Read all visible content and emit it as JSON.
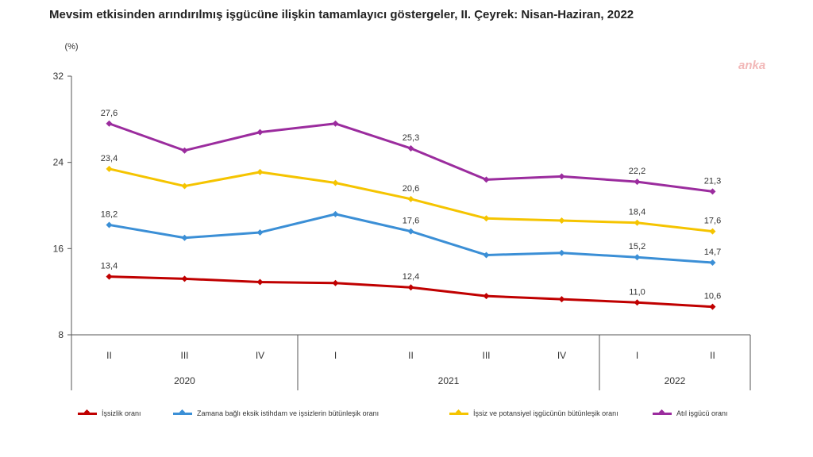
{
  "title": "Mevsim etkisinden arındırılmış işgücüne ilişkin tamamlayıcı göstergeler, II. Çeyrek: Nisan-Haziran, 2022",
  "watermark": "anka",
  "chart_data": {
    "type": "line",
    "ylabel": "(%)",
    "ylim": [
      8,
      32
    ],
    "yticks": [
      "8",
      "16",
      "24",
      "32"
    ],
    "categories": [
      "II",
      "III",
      "IV",
      "I",
      "II",
      "III",
      "IV",
      "I",
      "II"
    ],
    "years": [
      {
        "label": "2020",
        "span": [
          0,
          2
        ]
      },
      {
        "label": "2021",
        "span": [
          3,
          6
        ]
      },
      {
        "label": "2022",
        "span": [
          7,
          8
        ]
      }
    ],
    "grid": false,
    "legend_position": "bottom",
    "series": [
      {
        "name": "İşsizlik oranı",
        "color": "#c00000",
        "values": [
          13.4,
          13.2,
          12.9,
          12.8,
          12.4,
          11.6,
          11.3,
          11.0,
          10.6
        ],
        "labels": [
          "13,4",
          "",
          "",
          "",
          "12,4",
          "",
          "",
          "11,0",
          "10,6"
        ]
      },
      {
        "name": "Zamana bağlı eksik istihdam ve işsizlerin bütünleşik oranı",
        "color": "#3b8fd6",
        "values": [
          18.2,
          17.0,
          17.5,
          19.2,
          17.6,
          15.4,
          15.6,
          15.2,
          14.7
        ],
        "labels": [
          "18,2",
          "",
          "",
          "",
          "17,6",
          "",
          "",
          "15,2",
          "14,7"
        ]
      },
      {
        "name": "İşsiz ve potansiyel işgücünün bütünleşik oranı",
        "color": "#f5c400",
        "values": [
          23.4,
          21.8,
          23.1,
          22.1,
          20.6,
          18.8,
          18.6,
          18.4,
          17.6
        ],
        "labels": [
          "23,4",
          "",
          "",
          "",
          "20,6",
          "",
          "",
          "18,4",
          "17,6"
        ]
      },
      {
        "name": "Atıl işgücü oranı",
        "color": "#9b2c9e",
        "values": [
          27.6,
          25.1,
          26.8,
          27.6,
          25.3,
          22.4,
          22.7,
          22.2,
          21.3
        ],
        "labels": [
          "27,6",
          "",
          "",
          "",
          "25,3",
          "",
          "",
          "22,2",
          "21,3"
        ]
      }
    ]
  }
}
